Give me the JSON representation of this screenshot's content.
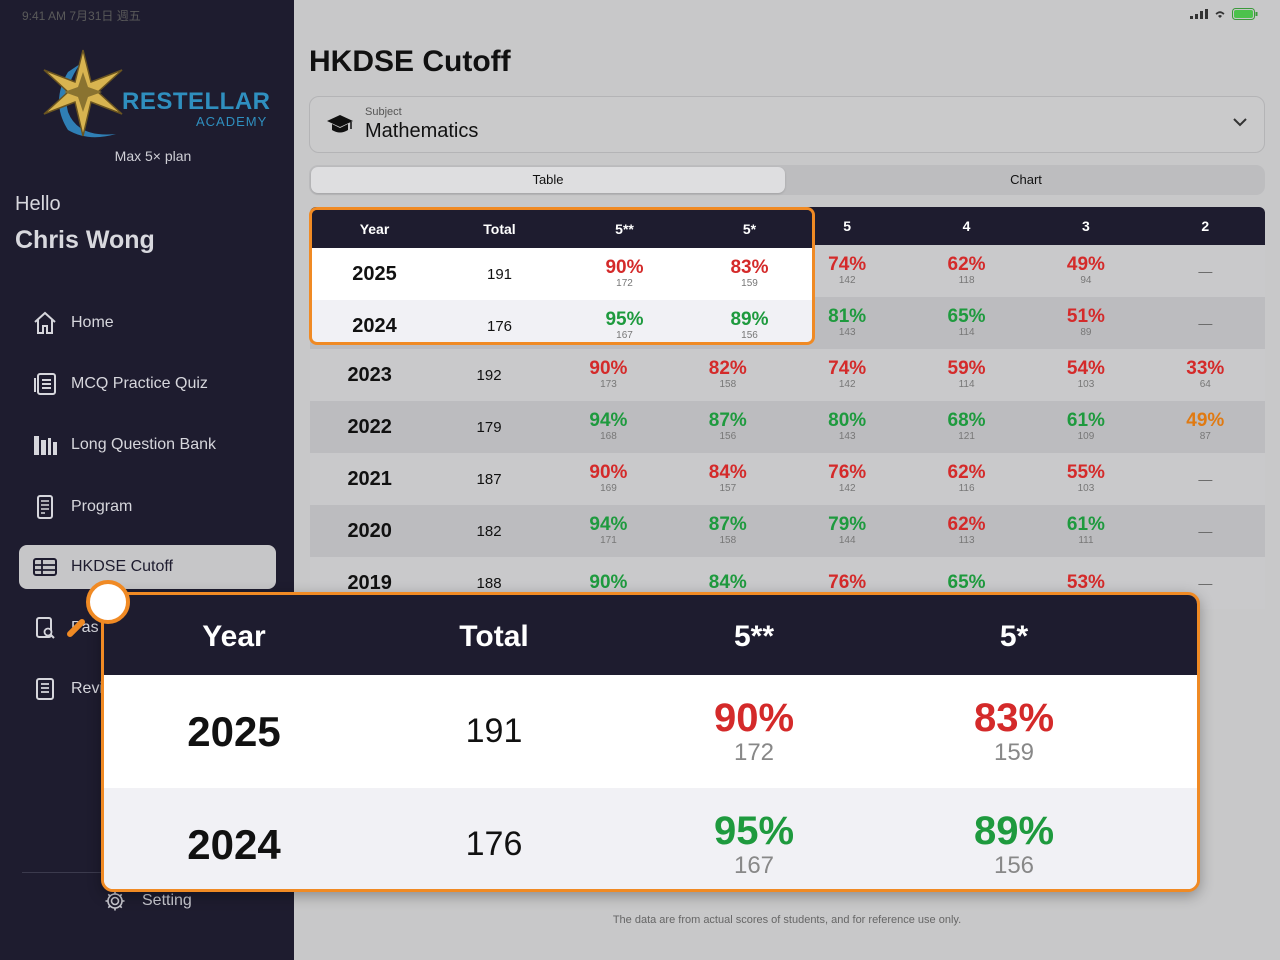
{
  "status": {
    "time": "9:41 AM  7月31日 週五"
  },
  "sidebar": {
    "logo_text": "RESTELLAR",
    "logo_sub": "ACADEMY",
    "plan": "Max 5× plan",
    "greeting": "Hello",
    "user_name": "Chris Wong",
    "items": [
      {
        "label": "Home",
        "icon": "home-icon"
      },
      {
        "label": "MCQ Practice Quiz",
        "icon": "quiz-icon"
      },
      {
        "label": "Long Question Bank",
        "icon": "books-icon"
      },
      {
        "label": "Program",
        "icon": "program-icon"
      },
      {
        "label": "HKDSE Cutoff",
        "icon": "table-icon",
        "active": true
      },
      {
        "label": "Pas",
        "icon": "paper-search-icon"
      },
      {
        "label": "Revi",
        "icon": "review-book-icon"
      }
    ],
    "setting_label": "Setting"
  },
  "main": {
    "title": "HKDSE Cutoff",
    "subject_caption": "Subject",
    "subject_value": "Mathematics",
    "tabs": [
      "Table",
      "Chart"
    ],
    "footnote": "The data are from actual scores of students, and for reference use only."
  },
  "table": {
    "headers": [
      "Year",
      "Total",
      "5**",
      "5*",
      "5",
      "4",
      "3",
      "2"
    ],
    "rows": [
      {
        "year": "2025",
        "total": "191",
        "grades": [
          [
            "90%",
            "172",
            "red"
          ],
          [
            "83%",
            "159",
            "red"
          ],
          [
            "74%",
            "142",
            "red"
          ],
          [
            "62%",
            "118",
            "red"
          ],
          [
            "49%",
            "94",
            "red"
          ],
          [
            "—",
            "",
            ""
          ]
        ]
      },
      {
        "year": "2024",
        "total": "176",
        "grades": [
          [
            "95%",
            "167",
            "green"
          ],
          [
            "89%",
            "156",
            "green"
          ],
          [
            "81%",
            "143",
            "green"
          ],
          [
            "65%",
            "114",
            "green"
          ],
          [
            "51%",
            "89",
            "red"
          ],
          [
            "—",
            "",
            ""
          ]
        ]
      },
      {
        "year": "2023",
        "total": "192",
        "grades": [
          [
            "90%",
            "173",
            "red"
          ],
          [
            "82%",
            "158",
            "red"
          ],
          [
            "74%",
            "142",
            "red"
          ],
          [
            "59%",
            "114",
            "red"
          ],
          [
            "54%",
            "103",
            "red"
          ],
          [
            "33%",
            "64",
            "red"
          ]
        ]
      },
      {
        "year": "2022",
        "total": "179",
        "grades": [
          [
            "94%",
            "168",
            "green"
          ],
          [
            "87%",
            "156",
            "green"
          ],
          [
            "80%",
            "143",
            "green"
          ],
          [
            "68%",
            "121",
            "green"
          ],
          [
            "61%",
            "109",
            "green"
          ],
          [
            "49%",
            "87",
            "orange"
          ]
        ]
      },
      {
        "year": "2021",
        "total": "187",
        "grades": [
          [
            "90%",
            "169",
            "red"
          ],
          [
            "84%",
            "157",
            "red"
          ],
          [
            "76%",
            "142",
            "red"
          ],
          [
            "62%",
            "116",
            "red"
          ],
          [
            "55%",
            "103",
            "red"
          ],
          [
            "—",
            "",
            ""
          ]
        ]
      },
      {
        "year": "2020",
        "total": "182",
        "grades": [
          [
            "94%",
            "171",
            "green"
          ],
          [
            "87%",
            "158",
            "green"
          ],
          [
            "79%",
            "144",
            "green"
          ],
          [
            "62%",
            "113",
            "red"
          ],
          [
            "61%",
            "111",
            "green"
          ],
          [
            "—",
            "",
            ""
          ]
        ]
      },
      {
        "year": "2019",
        "total": "188",
        "grades": [
          [
            "90%",
            "",
            "green"
          ],
          [
            "84%",
            "",
            "green"
          ],
          [
            "76%",
            "",
            "red"
          ],
          [
            "65%",
            "",
            "green"
          ],
          [
            "53%",
            "",
            "red"
          ],
          [
            "—",
            "",
            ""
          ]
        ]
      }
    ]
  },
  "colors": {
    "red": "#d42a2a",
    "green": "#1e9a3e",
    "orange": "#e07a12",
    "highlight": "#f08a24",
    "navy": "#1e1c2f"
  }
}
